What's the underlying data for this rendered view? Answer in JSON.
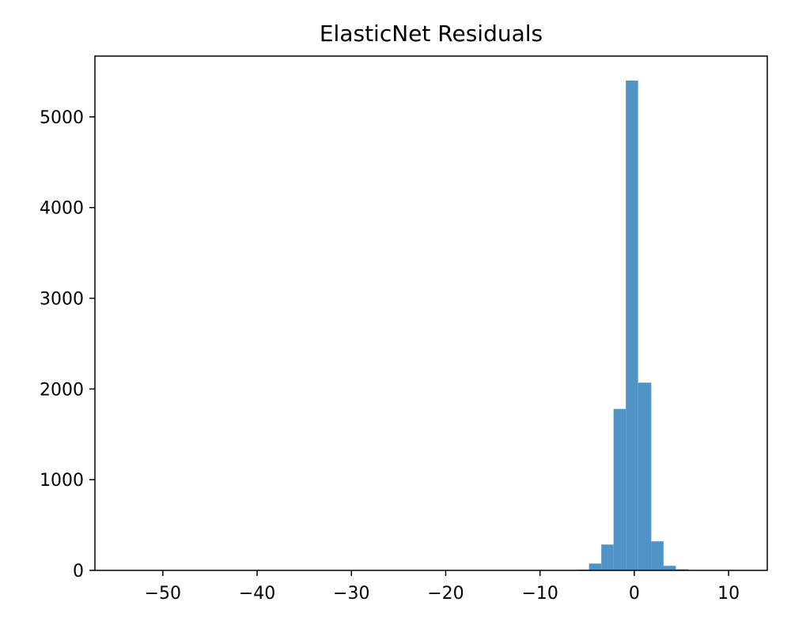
{
  "chart_data": {
    "type": "bar",
    "title": "ElasticNet Residuals",
    "xlabel": "",
    "ylabel": "",
    "xlim": [
      -57.2,
      14.1
    ],
    "ylim": [
      0,
      5670
    ],
    "xticks": [
      -50,
      -40,
      -30,
      -20,
      -10,
      0,
      10
    ],
    "xtick_labels": [
      "−50",
      "−40",
      "−30",
      "−20",
      "−10",
      "0",
      "10"
    ],
    "yticks": [
      0,
      1000,
      2000,
      3000,
      4000,
      5000
    ],
    "ytick_labels": [
      "0",
      "1000",
      "2000",
      "3000",
      "4000",
      "5000"
    ],
    "grid": false,
    "bar_color": "#4f94c4",
    "bins": [
      {
        "x0": -55.8,
        "x1": -54.5,
        "value": 1
      },
      {
        "x0": -6.0,
        "x1": -4.8,
        "value": 8
      },
      {
        "x0": -4.8,
        "x1": -3.5,
        "value": 75
      },
      {
        "x0": -3.5,
        "x1": -2.2,
        "value": 285
      },
      {
        "x0": -2.2,
        "x1": -0.9,
        "value": 1780
      },
      {
        "x0": -0.9,
        "x1": 0.4,
        "value": 5400
      },
      {
        "x0": 0.4,
        "x1": 1.8,
        "value": 2070
      },
      {
        "x0": 1.8,
        "x1": 3.1,
        "value": 320
      },
      {
        "x0": 3.1,
        "x1": 4.4,
        "value": 50
      },
      {
        "x0": 4.4,
        "x1": 5.7,
        "value": 12
      },
      {
        "x0": 5.7,
        "x1": 7.0,
        "value": 3
      }
    ]
  }
}
